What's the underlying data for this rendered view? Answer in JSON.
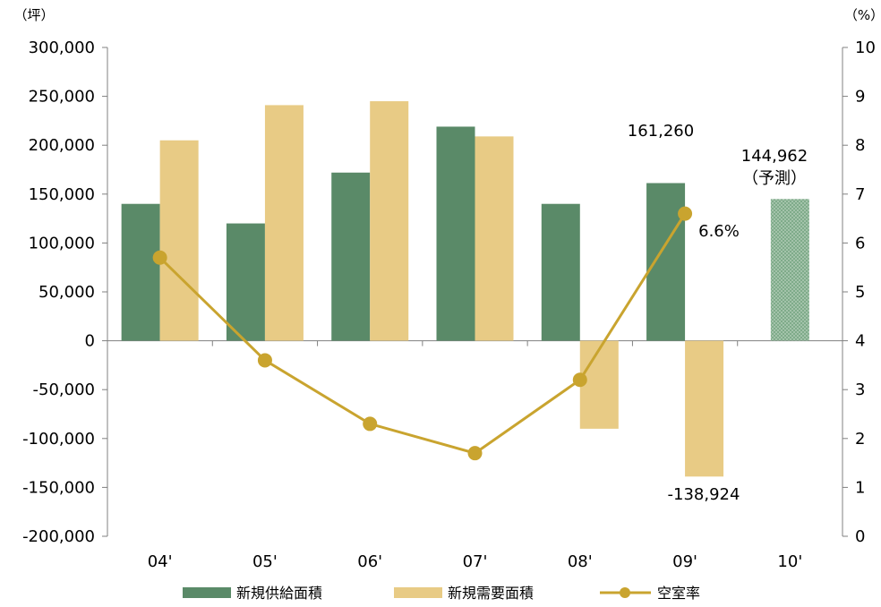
{
  "chart_data": {
    "type": "bar+line",
    "title": "",
    "categories": [
      "04'",
      "05'",
      "06'",
      "07'",
      "08'",
      "09'",
      "10'"
    ],
    "series": [
      {
        "name": "新規供給面積",
        "type": "bar",
        "axis": "left",
        "color": "#5a8a68",
        "values": [
          140000,
          120000,
          172000,
          219000,
          140000,
          161260,
          144962
        ]
      },
      {
        "name": "新規需要面積",
        "type": "bar",
        "axis": "left",
        "color": "#e8cb85",
        "values": [
          205000,
          241000,
          245000,
          209000,
          -90000,
          -138924,
          null
        ]
      },
      {
        "name": "空室率",
        "type": "line",
        "axis": "right",
        "color": "#c9a42f",
        "values": [
          5.7,
          3.6,
          2.3,
          1.7,
          3.2,
          6.6,
          null
        ]
      }
    ],
    "left_axis": {
      "unit": "（坪）",
      "min": -200000,
      "max": 300000,
      "step": 50000,
      "tick_labels": [
        "300,000",
        "250,000",
        "200,000",
        "150,000",
        "100,000",
        "50,000",
        "0",
        "-50,000",
        "-100,000",
        "-150,000",
        "-200,000"
      ]
    },
    "right_axis": {
      "unit": "（%）",
      "min": 0,
      "max": 10,
      "step": 1,
      "tick_labels": [
        "10",
        "9",
        "8",
        "7",
        "6",
        "5",
        "4",
        "3",
        "2",
        "1",
        "0"
      ]
    },
    "annotations": {
      "supply_09": "161,260",
      "supply_10": "144,962",
      "supply_10_note": "（予測）",
      "vacancy_09": "6.6%",
      "demand_09": "-138,924"
    },
    "forecast_category": "10'",
    "legend": {
      "placement": "bottom",
      "items": [
        "新規供給面積",
        "新規需要面積",
        "空室率"
      ]
    }
  }
}
